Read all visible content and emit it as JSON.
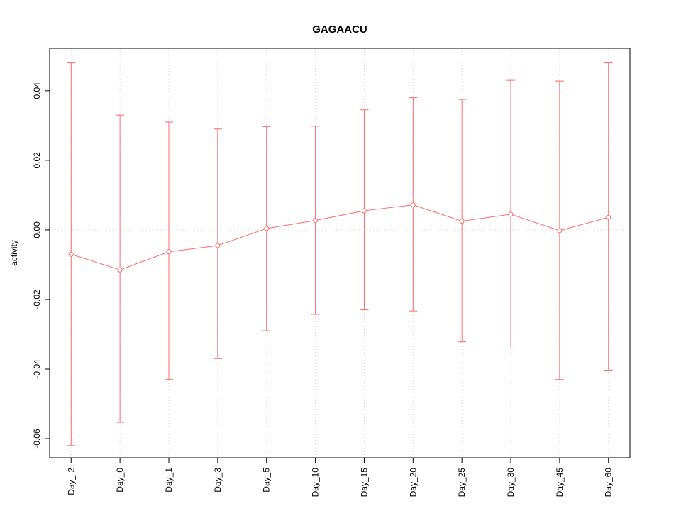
{
  "figure": {
    "title": "GAGAACU",
    "ylabel": "activity",
    "xlabel": ""
  },
  "chart_data": {
    "type": "line",
    "title": "GAGAACU",
    "xlabel": "",
    "ylabel": "activity",
    "categories": [
      "Day_-2",
      "Day_0",
      "Day_1",
      "Day_3",
      "Day_5",
      "Day_10",
      "Day_15",
      "Day_20",
      "Day_25",
      "Day_30",
      "Day_45",
      "Day_60"
    ],
    "values": [
      -0.007,
      -0.0115,
      -0.0063,
      -0.0045,
      0.0004,
      0.0027,
      0.0055,
      0.0072,
      0.0025,
      0.0045,
      -0.0002,
      0.0036
    ],
    "error_high": [
      0.048,
      0.033,
      0.031,
      0.029,
      0.0297,
      0.0298,
      0.0345,
      0.038,
      0.0375,
      0.043,
      0.0428,
      0.048
    ],
    "error_low": [
      -0.062,
      -0.0553,
      -0.043,
      -0.037,
      -0.029,
      -0.0243,
      -0.023,
      -0.0233,
      -0.0322,
      -0.034,
      -0.043,
      -0.0405
    ],
    "ylim": [
      -0.0655,
      0.0522
    ],
    "yticks": [
      -0.06,
      -0.04,
      -0.02,
      0,
      0.02,
      0.04
    ],
    "grid": "vertical-dotted-gridlines-and-dotted-zero-line",
    "legend": "none",
    "colors": {
      "series": "#ff6a6a",
      "grid": "#d8d8d8",
      "frame": "#000000",
      "text": "#000000",
      "background": "#ffffff"
    }
  }
}
